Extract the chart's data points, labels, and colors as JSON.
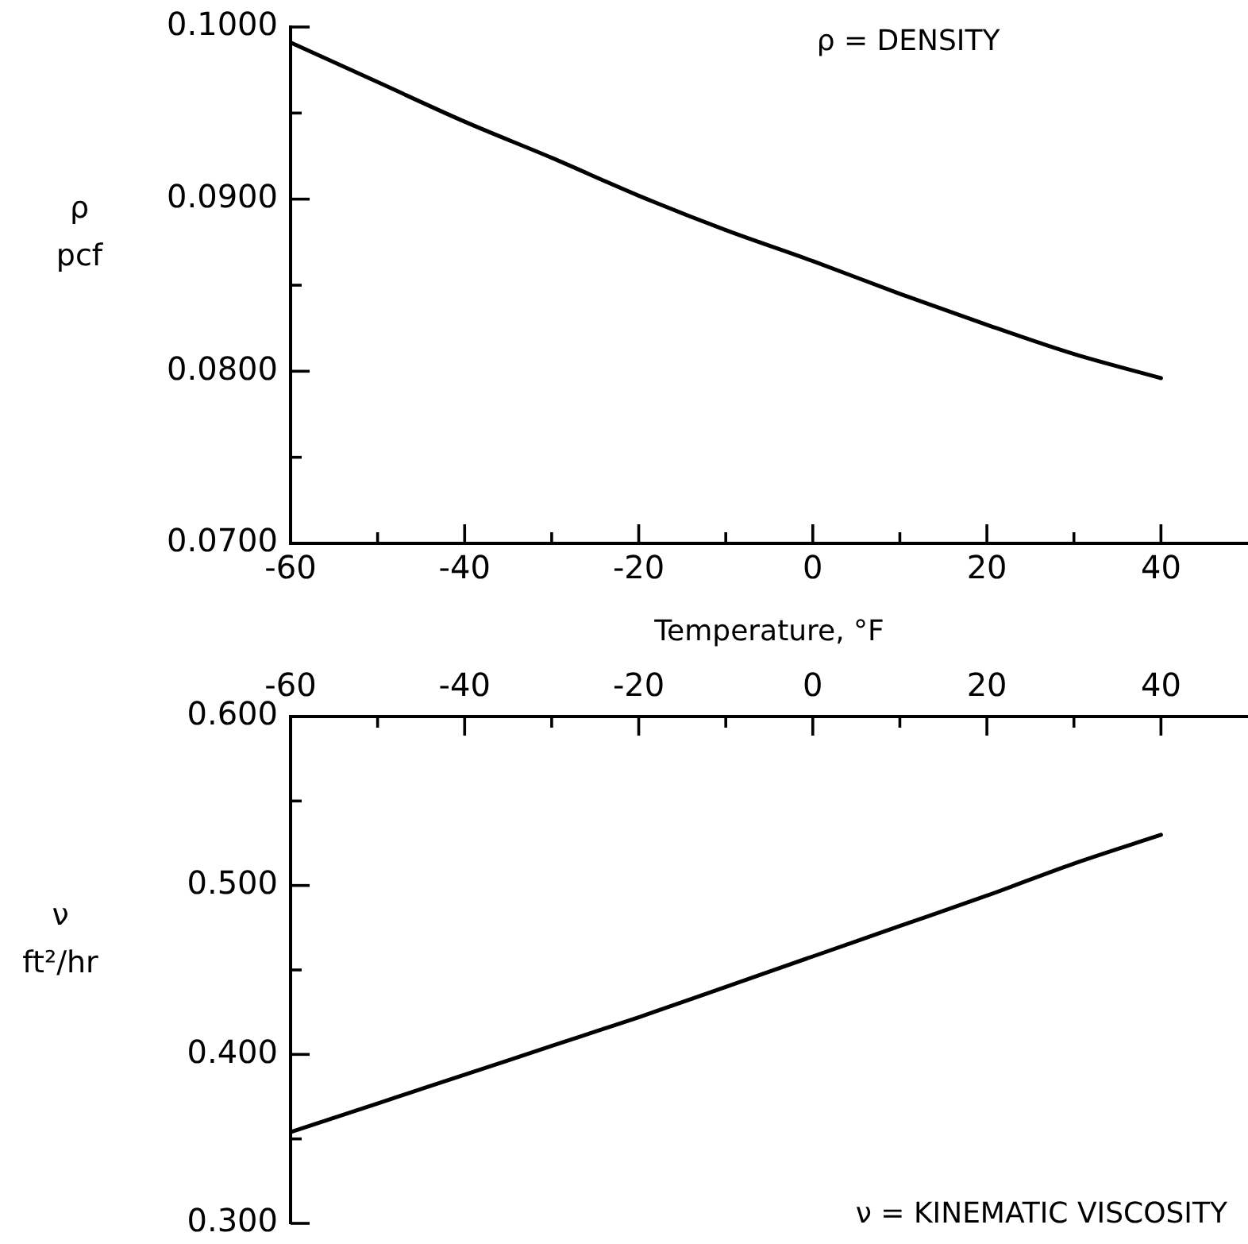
{
  "chart_data": [
    {
      "type": "line",
      "xlabel": "Temperature, °F",
      "ylabel": "ρ\npcf",
      "annotations": [
        "ρ = DENSITY"
      ],
      "marker": "none",
      "x": [
        -60,
        -50,
        -40,
        -30,
        -20,
        -10,
        0,
        10,
        20,
        30,
        40
      ],
      "series": [
        {
          "color": "#000000",
          "values": [
            0.0991,
            0.0968,
            0.0945,
            0.0924,
            0.0902,
            0.0882,
            0.0864,
            0.0845,
            0.0827,
            0.081,
            0.0796
          ]
        }
      ],
      "xlim": [
        -60,
        50
      ],
      "xticks": [
        -60,
        {
          "value": -50,
          "label": null
        },
        -40,
        {
          "value": -30,
          "label": null
        },
        -20,
        {
          "value": -10,
          "label": null
        },
        0,
        {
          "value": 10,
          "label": null
        },
        20,
        {
          "value": 30,
          "label": null
        },
        40
      ],
      "ylim": [
        0.07,
        0.1
      ],
      "yticks": [
        {
          "value": 0.07,
          "label": "0.0700"
        },
        {
          "value": 0.075,
          "label": null
        },
        {
          "value": 0.08,
          "label": "0.0800"
        },
        {
          "value": 0.085,
          "label": null
        },
        {
          "value": 0.09,
          "label": "0.0900"
        },
        {
          "value": 0.095,
          "label": null
        },
        {
          "value": 0.1,
          "label": "0.1000"
        }
      ]
    },
    {
      "type": "line",
      "ylabel": "ν\nft²/hr",
      "annotations": [
        "ν = KINEMATIC VISCOSITY"
      ],
      "marker": "none",
      "x": [
        -60,
        -50,
        -40,
        -30,
        -20,
        -10,
        0,
        10,
        20,
        30,
        40
      ],
      "series": [
        {
          "color": "#000000",
          "values": [
            0.354,
            0.371,
            0.388,
            0.405,
            0.422,
            0.44,
            0.458,
            0.476,
            0.494,
            0.513,
            0.53
          ]
        }
      ],
      "xlim": [
        -60,
        50
      ],
      "xticks": [
        -60,
        {
          "value": -50,
          "label": null
        },
        -40,
        {
          "value": -30,
          "label": null
        },
        -20,
        {
          "value": -10,
          "label": null
        },
        0,
        {
          "value": 10,
          "label": null
        },
        20,
        {
          "value": 30,
          "label": null
        },
        40
      ],
      "ylim": [
        0.3,
        0.6
      ],
      "yticks": [
        {
          "value": 0.3,
          "label": "0.300"
        },
        {
          "value": 0.35,
          "label": null
        },
        {
          "value": 0.4,
          "label": "0.400"
        },
        {
          "value": 0.45,
          "label": null
        },
        {
          "value": 0.5,
          "label": "0.500"
        },
        {
          "value": 0.55,
          "label": null
        },
        {
          "value": 0.6,
          "label": "0.600"
        }
      ]
    }
  ]
}
